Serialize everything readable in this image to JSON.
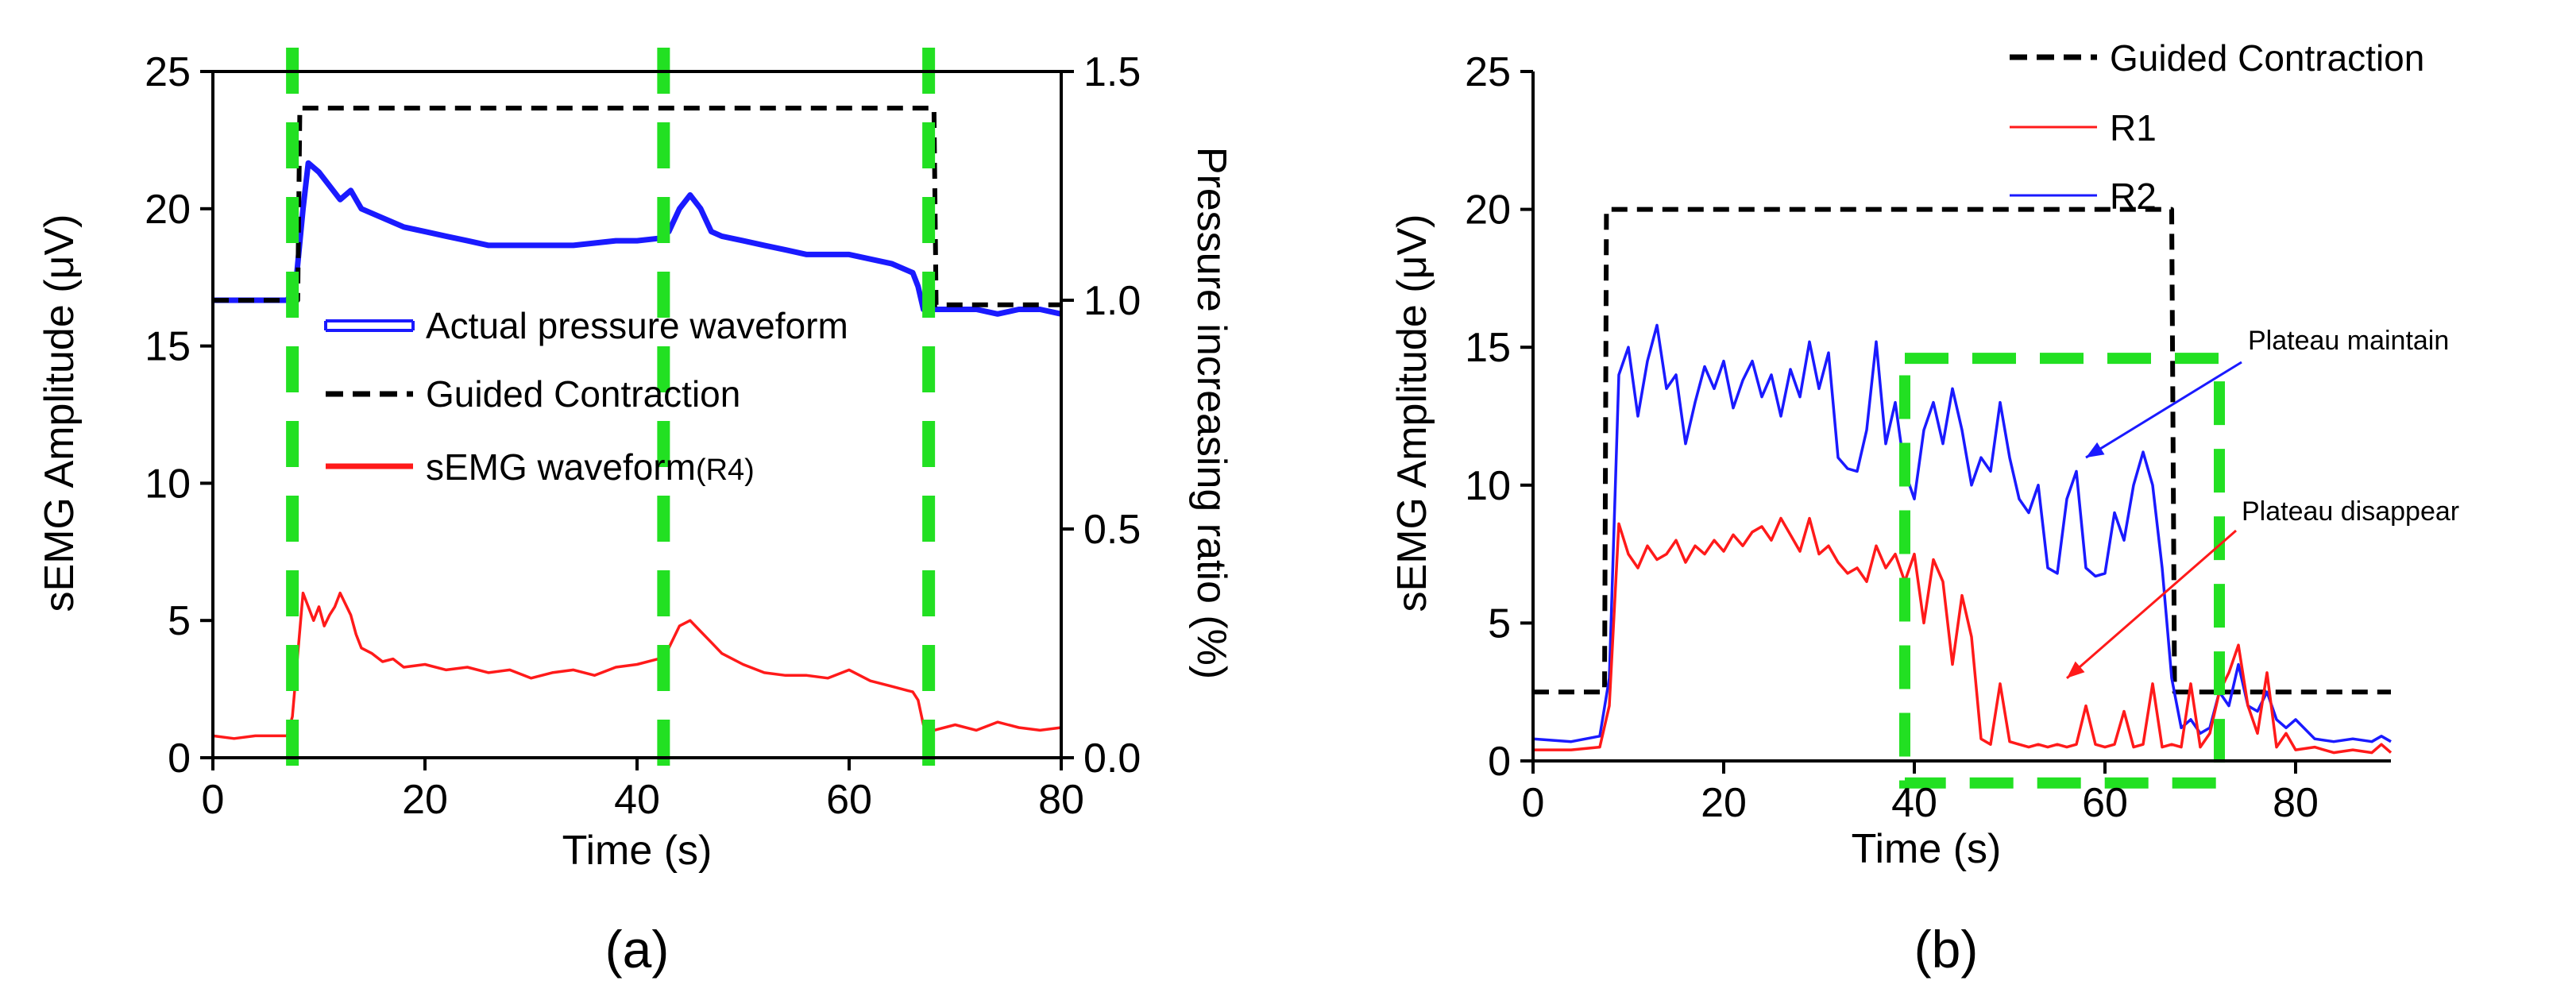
{
  "chart_data": [
    {
      "type": "line",
      "panel_label": "(a)",
      "xlabel": "Time (s)",
      "ylabel": "sEMG Amplitude (μV)",
      "y2label": "Pressure increasing ratio (%)",
      "xlim": [
        0,
        80
      ],
      "ylim": [
        0,
        25
      ],
      "y2lim": [
        0,
        1.5
      ],
      "xticks": [
        "0",
        "20",
        "40",
        "60",
        "80"
      ],
      "yticks": [
        "0",
        "5",
        "10",
        "15",
        "20",
        "25"
      ],
      "y2ticks": [
        "0.0",
        "0.5",
        "1.0",
        "1.5"
      ],
      "grid": false,
      "legend_position": "center",
      "legend": [
        {
          "label": "Actual pressure waveform",
          "style": "double-line",
          "color": "#1a1aff"
        },
        {
          "label": "Guided Contraction",
          "style": "dashed",
          "color": "#000000"
        },
        {
          "label": "sEMG waveform",
          "label_suffix": "(R4)",
          "style": "solid",
          "color": "#ff1a1a"
        }
      ],
      "vertical_markers": {
        "color": "#22e022",
        "x": [
          7.5,
          42.5,
          67.5
        ]
      },
      "series": [
        {
          "key": "pressure",
          "axis": "y2",
          "color": "#1a1aff",
          "x": [
            0,
            7,
            7.8,
            8.5,
            9,
            10,
            11,
            12,
            13,
            14,
            16,
            18,
            20,
            22,
            24,
            26,
            28,
            30,
            32,
            34,
            36,
            38,
            40,
            42,
            43,
            44,
            45,
            46,
            47,
            48,
            50,
            52,
            54,
            56,
            58,
            60,
            62,
            64,
            66,
            66.5,
            67,
            68,
            70,
            72,
            74,
            76,
            78,
            80
          ],
          "y": [
            1.0,
            1.0,
            1.03,
            1.2,
            1.3,
            1.28,
            1.25,
            1.22,
            1.24,
            1.2,
            1.18,
            1.16,
            1.15,
            1.14,
            1.13,
            1.12,
            1.12,
            1.12,
            1.12,
            1.12,
            1.125,
            1.13,
            1.13,
            1.135,
            1.15,
            1.2,
            1.23,
            1.2,
            1.15,
            1.14,
            1.13,
            1.12,
            1.11,
            1.1,
            1.1,
            1.1,
            1.09,
            1.08,
            1.06,
            1.03,
            0.98,
            0.98,
            0.98,
            0.98,
            0.97,
            0.98,
            0.98,
            0.97
          ]
        },
        {
          "key": "guided",
          "axis": "y2",
          "color": "#000000",
          "x": [
            0,
            8,
            8.2,
            68,
            68.2,
            80
          ],
          "y": [
            1.0,
            1.0,
            1.42,
            1.42,
            0.99,
            0.99
          ]
        },
        {
          "key": "semg_r4",
          "axis": "y",
          "color": "#ff1a1a",
          "x": [
            0,
            2,
            4,
            6,
            7,
            7.5,
            8.5,
            9.5,
            10,
            10.5,
            11,
            11.5,
            12,
            12.5,
            13,
            13.5,
            14,
            15,
            16,
            17,
            18,
            20,
            22,
            24,
            26,
            28,
            30,
            32,
            34,
            36,
            38,
            40,
            42,
            43,
            44,
            45,
            46,
            47,
            48,
            50,
            52,
            54,
            56,
            58,
            60,
            62,
            64,
            66,
            66.5,
            67,
            68,
            70,
            72,
            74,
            76,
            78,
            80
          ],
          "y": [
            0.8,
            0.7,
            0.8,
            0.8,
            0.8,
            1.5,
            6.0,
            5.0,
            5.5,
            4.8,
            5.2,
            5.5,
            6.0,
            5.6,
            5.2,
            4.5,
            4.0,
            3.8,
            3.5,
            3.6,
            3.3,
            3.4,
            3.2,
            3.3,
            3.1,
            3.2,
            2.9,
            3.1,
            3.2,
            3.0,
            3.3,
            3.4,
            3.6,
            4.0,
            4.8,
            5.0,
            4.6,
            4.2,
            3.8,
            3.4,
            3.1,
            3.0,
            3.0,
            2.9,
            3.2,
            2.8,
            2.6,
            2.4,
            2.1,
            1.2,
            1.0,
            1.2,
            1.0,
            1.3,
            1.1,
            1.0,
            1.1
          ]
        }
      ]
    },
    {
      "type": "line",
      "panel_label": "(b)",
      "xlabel": "Time (s)",
      "ylabel": "sEMG Amplitude (μV)",
      "xlim": [
        0,
        90
      ],
      "ylim": [
        0,
        25
      ],
      "xticks": [
        "0",
        "20",
        "40",
        "60",
        "80"
      ],
      "yticks": [
        "0",
        "5",
        "10",
        "15",
        "20",
        "25"
      ],
      "grid": false,
      "legend_position": "top-right",
      "legend": [
        {
          "label": "Guided Contraction",
          "style": "dashed",
          "color": "#000000"
        },
        {
          "label": "R1",
          "style": "solid",
          "color": "#ff1a1a"
        },
        {
          "label": "R2",
          "style": "solid",
          "color": "#1a1aff"
        }
      ],
      "highlight_box": {
        "color": "#22e022",
        "x0": 39,
        "x1": 72,
        "y0": -0.8,
        "y1": 14.6
      },
      "annotations": [
        {
          "text": "Plateau maintain",
          "color": "#1a1aff",
          "arrow_to": [
            58,
            11
          ]
        },
        {
          "text": "Plateau disappear",
          "color": "#ff1a1a",
          "arrow_to": [
            56,
            3
          ]
        }
      ],
      "series": [
        {
          "key": "guided",
          "color": "#000000",
          "x": [
            0,
            7.5,
            7.7,
            67,
            67.3,
            90
          ],
          "y": [
            2.5,
            2.5,
            20,
            20,
            2.5,
            2.5
          ]
        },
        {
          "key": "r2",
          "color": "#1a1aff",
          "x": [
            0,
            4,
            7,
            8,
            9,
            10,
            11,
            12,
            13,
            14,
            15,
            16,
            17,
            18,
            19,
            20,
            21,
            22,
            23,
            24,
            25,
            26,
            27,
            28,
            29,
            30,
            31,
            32,
            33,
            34,
            35,
            36,
            37,
            38,
            39,
            40,
            41,
            42,
            43,
            44,
            45,
            46,
            47,
            48,
            49,
            50,
            51,
            52,
            53,
            54,
            55,
            56,
            57,
            58,
            59,
            60,
            61,
            62,
            63,
            64,
            65,
            66,
            67,
            68,
            69,
            70,
            71,
            72,
            73,
            74,
            75,
            76,
            77,
            78,
            79,
            80,
            82,
            84,
            86,
            88,
            89,
            90
          ],
          "y": [
            0.8,
            0.7,
            0.9,
            3,
            14,
            15,
            12.5,
            14.5,
            15.8,
            13.5,
            14,
            11.5,
            13,
            14.3,
            13.5,
            14.5,
            12.8,
            13.8,
            14.5,
            13.2,
            14,
            12.5,
            14.2,
            13.2,
            15.2,
            13.5,
            14.8,
            11,
            10.6,
            10.5,
            12,
            15.2,
            11.5,
            13,
            10.5,
            9.5,
            12,
            13,
            11.5,
            13.5,
            12,
            10,
            11,
            10.5,
            13,
            11,
            9.5,
            9,
            10,
            7,
            6.8,
            9.5,
            10.5,
            7,
            6.7,
            6.8,
            9,
            8,
            10,
            11.2,
            10,
            7,
            3,
            1.2,
            1.5,
            1,
            1.2,
            2.5,
            2,
            3.5,
            2,
            1.8,
            2.5,
            1.5,
            1.2,
            1.5,
            0.8,
            0.7,
            0.8,
            0.7,
            0.9,
            0.7
          ]
        },
        {
          "key": "r1",
          "color": "#ff1a1a",
          "x": [
            0,
            4,
            7,
            8,
            9,
            10,
            11,
            12,
            13,
            14,
            15,
            16,
            17,
            18,
            19,
            20,
            21,
            22,
            23,
            24,
            25,
            26,
            27,
            28,
            29,
            30,
            31,
            32,
            33,
            34,
            35,
            36,
            37,
            38,
            39,
            40,
            41,
            42,
            43,
            44,
            45,
            46,
            47,
            48,
            49,
            50,
            51,
            52,
            53,
            54,
            55,
            56,
            57,
            58,
            59,
            60,
            61,
            62,
            63,
            64,
            65,
            66,
            67,
            68,
            69,
            70,
            71,
            72,
            73,
            74,
            75,
            76,
            77,
            78,
            79,
            80,
            82,
            84,
            86,
            88,
            89,
            90
          ],
          "y": [
            0.4,
            0.4,
            0.5,
            2,
            8.6,
            7.5,
            7,
            7.8,
            7.3,
            7.5,
            8,
            7.2,
            7.8,
            7.5,
            8,
            7.6,
            8.2,
            7.8,
            8.3,
            8.5,
            8,
            8.8,
            8.2,
            7.6,
            8.8,
            7.5,
            7.8,
            7.2,
            6.8,
            7,
            6.5,
            7.8,
            7,
            7.5,
            6.5,
            7.5,
            5,
            7.3,
            6.5,
            3.5,
            6,
            4.5,
            0.8,
            0.6,
            2.8,
            0.7,
            0.6,
            0.5,
            0.6,
            0.5,
            0.6,
            0.5,
            0.6,
            2,
            0.6,
            0.5,
            0.6,
            1.8,
            0.5,
            0.6,
            2.8,
            0.5,
            0.6,
            0.5,
            2.8,
            0.5,
            1,
            2.5,
            3.2,
            4.2,
            2,
            1,
            3.2,
            0.5,
            1,
            0.4,
            0.5,
            0.3,
            0.4,
            0.3,
            0.6,
            0.3
          ]
        }
      ]
    }
  ]
}
